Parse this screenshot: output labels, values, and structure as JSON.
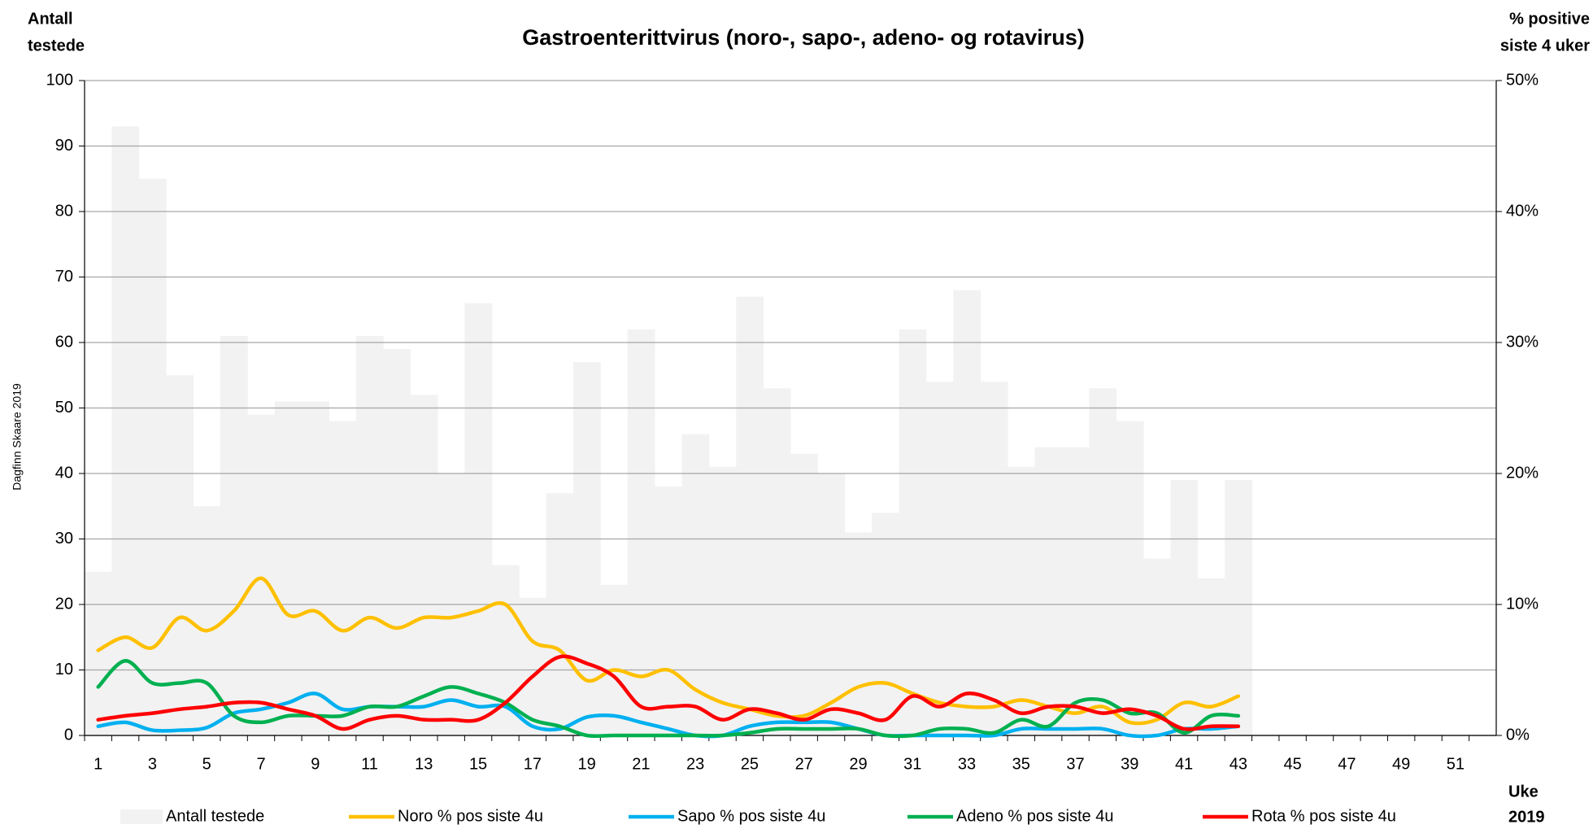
{
  "chart_data": {
    "type": "combo",
    "title": "Gastroenterittvirus (noro-, sapo-, adeno- og rotavirus)",
    "y_label": [
      "Antall",
      "testede"
    ],
    "y2_label": [
      "% positive",
      "siste 4 uker"
    ],
    "x_label": [
      "Uke",
      "2019"
    ],
    "watermark": "Dagfinn Skaare 2019",
    "categories": [
      "1",
      null,
      "3",
      null,
      "5",
      null,
      "7",
      null,
      "9",
      null,
      "11",
      null,
      "13",
      null,
      "15",
      null,
      "17",
      null,
      "19",
      null,
      "21",
      null,
      "23",
      null,
      "25",
      null,
      "27",
      null,
      "29",
      null,
      "31",
      null,
      "33",
      null,
      "35",
      null,
      "37",
      null,
      "39",
      null,
      "41",
      null,
      "43",
      null,
      "45",
      null,
      "47",
      null,
      "49",
      null,
      "51",
      null
    ],
    "ylim": [
      0,
      100
    ],
    "yticks": [
      0,
      10,
      20,
      30,
      40,
      50,
      60,
      70,
      80,
      90,
      100
    ],
    "y2lim": [
      0,
      50
    ],
    "y2ticks": [
      {
        "value": 0,
        "label": "0%"
      },
      {
        "value": 10,
        "label": "10%"
      },
      {
        "value": 20,
        "label": "20%"
      },
      {
        "value": 30,
        "label": "30%"
      },
      {
        "value": 40,
        "label": "40%"
      },
      {
        "value": 50,
        "label": "50%"
      }
    ],
    "grid": true,
    "series": [
      {
        "name": "Antall testede",
        "type": "bar",
        "color": "#f2f2f2",
        "values": [
          25,
          93,
          85,
          55,
          35,
          61,
          49,
          51,
          51,
          48,
          61,
          59,
          52,
          40,
          66,
          26,
          21,
          37,
          57,
          23,
          62,
          38,
          46,
          41,
          67,
          53,
          43,
          40,
          31,
          34,
          62,
          54,
          68,
          54,
          41,
          44,
          44,
          53,
          48,
          27,
          39,
          24,
          39,
          null,
          null,
          null,
          null,
          null,
          null,
          null,
          null,
          null
        ]
      },
      {
        "name": "Noro % pos siste 4u",
        "type": "line",
        "axis": "y2",
        "color": "#ffc000",
        "values": [
          6.5,
          7.5,
          6.7,
          9,
          8,
          9.5,
          12,
          9.2,
          9.5,
          8,
          9,
          8.2,
          9,
          9,
          9.5,
          10,
          7.2,
          6.5,
          4.2,
          5,
          4.5,
          5,
          3.5,
          2.5,
          2,
          1.5,
          1.5,
          2.5,
          3.7,
          4,
          3.2,
          2.5,
          2.2,
          2.2,
          2.7,
          2.2,
          1.7,
          2.2,
          1,
          1.2,
          2.5,
          2.2,
          3,
          null,
          null,
          null,
          null,
          null,
          null,
          null,
          null,
          null
        ]
      },
      {
        "name": "Sapo % pos siste 4u",
        "type": "line",
        "axis": "y2",
        "color": "#00b0f0",
        "values": [
          0.7,
          1,
          0.4,
          0.4,
          0.6,
          1.7,
          2,
          2.5,
          3.2,
          2,
          2.2,
          2.2,
          2.2,
          2.7,
          2.2,
          2.2,
          0.7,
          0.5,
          1.4,
          1.5,
          1,
          0.5,
          0,
          0,
          0.7,
          1,
          1,
          1,
          0.5,
          0,
          0,
          0,
          0,
          0,
          0.5,
          0.5,
          0.5,
          0.5,
          0,
          0,
          0.5,
          0.5,
          0.7,
          null,
          null,
          null,
          null,
          null,
          null,
          null,
          null,
          null
        ]
      },
      {
        "name": "Adeno % pos siste 4u",
        "type": "line",
        "axis": "y2",
        "color": "#00b050",
        "values": [
          3.7,
          5.7,
          4,
          4,
          4,
          1.5,
          1,
          1.5,
          1.5,
          1.5,
          2.2,
          2.2,
          3,
          3.7,
          3.2,
          2.5,
          1.2,
          0.7,
          0,
          0,
          0,
          0,
          0,
          0,
          0.2,
          0.5,
          0.5,
          0.5,
          0.5,
          0,
          0,
          0.5,
          0.5,
          0.2,
          1.2,
          0.7,
          2.5,
          2.7,
          1.7,
          1.7,
          0.2,
          1.5,
          1.5,
          null,
          null,
          null,
          null,
          null,
          null,
          null,
          null,
          null
        ]
      },
      {
        "name": "Rota % pos siste 4u",
        "type": "line",
        "axis": "y2",
        "color": "#ff0000",
        "values": [
          1.2,
          1.5,
          1.7,
          2,
          2.2,
          2.5,
          2.5,
          2,
          1.5,
          0.5,
          1.2,
          1.5,
          1.2,
          1.2,
          1.2,
          2.5,
          4.5,
          6,
          5.5,
          4.5,
          2.2,
          2.2,
          2.2,
          1.2,
          2,
          1.7,
          1.2,
          2,
          1.7,
          1.2,
          3,
          2.2,
          3.2,
          2.7,
          1.7,
          2.2,
          2.2,
          1.7,
          2,
          1.5,
          0.5,
          0.7,
          0.7,
          null,
          null,
          null,
          null,
          null,
          null,
          null,
          null,
          null
        ]
      }
    ]
  }
}
